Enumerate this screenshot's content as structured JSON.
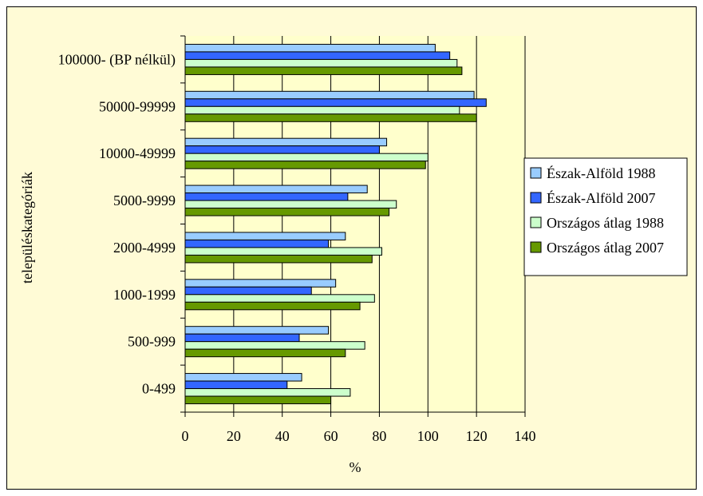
{
  "chart_data": {
    "type": "bar",
    "orientation": "horizontal",
    "categories": [
      "0-499",
      "500-999",
      "1000-1999",
      "2000-4999",
      "5000-9999",
      "10000-49999",
      "50000-99999",
      "100000- (BP nélkül)"
    ],
    "series": [
      {
        "name": "Észak-Alföld 1988",
        "color": "#99ccff",
        "values": [
          48,
          59,
          62,
          66,
          75,
          83,
          119,
          103
        ]
      },
      {
        "name": "Észak-Alföld 2007",
        "color": "#3366ff",
        "values": [
          42,
          47,
          52,
          59,
          67,
          80,
          124,
          109
        ]
      },
      {
        "name": "Országos átlag 1988",
        "color": "#ccffcc",
        "values": [
          68,
          74,
          78,
          81,
          87,
          100,
          113,
          112
        ]
      },
      {
        "name": "Országos átlag 2007",
        "color": "#669900",
        "values": [
          60,
          66,
          72,
          77,
          84,
          99,
          120,
          114
        ]
      }
    ],
    "xlabel": "%",
    "ylabel": "településkategóriák",
    "xlim": [
      0,
      140
    ],
    "xticks": [
      "0",
      "20",
      "40",
      "60",
      "80",
      "100",
      "120",
      "140"
    ],
    "grid": "vertical",
    "legend_position": "right"
  }
}
